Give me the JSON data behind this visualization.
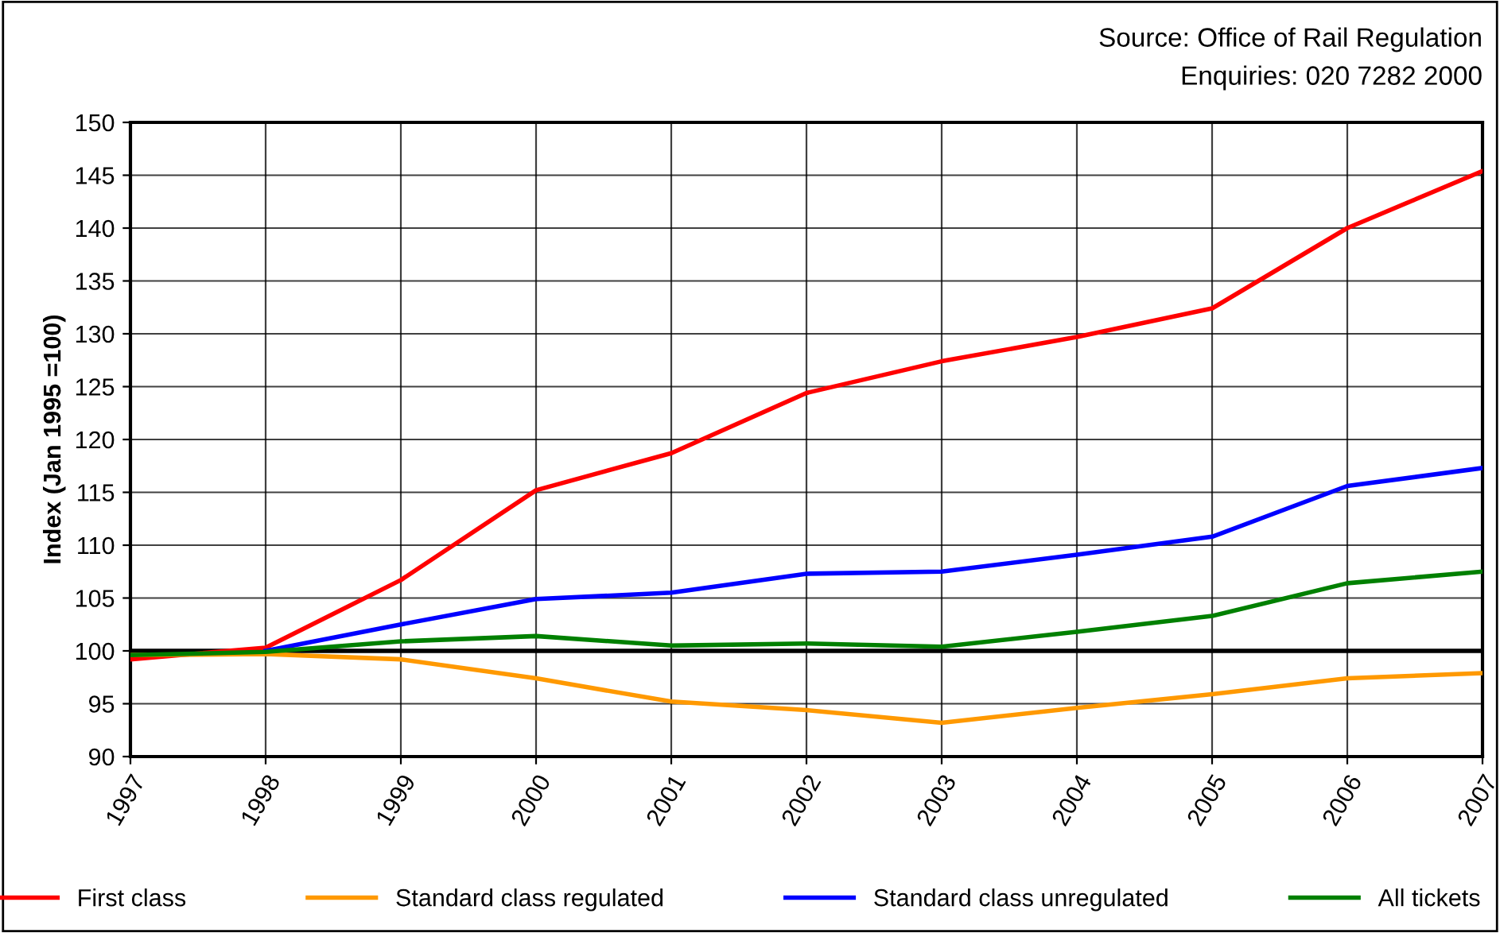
{
  "chart_data": {
    "type": "line",
    "ylabel": "Index (Jan 1995 =100)",
    "categories": [
      "1997",
      "1998",
      "1999",
      "2000",
      "2001",
      "2002",
      "2003",
      "2004",
      "2005",
      "2006",
      "2007"
    ],
    "series": [
      {
        "name": "First class",
        "color": "#ff0000",
        "values": [
          99.2,
          100.3,
          106.7,
          115.2,
          118.7,
          124.4,
          127.4,
          129.7,
          132.4,
          140.0,
          145.4
        ]
      },
      {
        "name": "Standard class regulated",
        "color": "#ff9900",
        "values": [
          99.6,
          99.7,
          99.2,
          97.4,
          95.2,
          94.4,
          93.2,
          94.6,
          95.9,
          97.4,
          97.9
        ]
      },
      {
        "name": "Standard class unregulated",
        "color": "#0000ff",
        "values": [
          null,
          100.0,
          102.5,
          104.9,
          105.5,
          107.3,
          107.5,
          109.1,
          110.8,
          115.6,
          117.3
        ]
      },
      {
        "name": "All tickets",
        "color": "#008000",
        "values": [
          99.6,
          99.9,
          100.9,
          101.4,
          100.5,
          100.7,
          100.4,
          101.8,
          103.3,
          106.4,
          107.5
        ]
      }
    ],
    "ylim": [
      90,
      150
    ],
    "yticks": [
      90,
      95,
      100,
      105,
      110,
      115,
      120,
      125,
      130,
      135,
      140,
      145,
      150
    ],
    "ref_lines": [
      {
        "axis": "y",
        "value": 100,
        "color": "#000000"
      }
    ],
    "annotations": [
      "Source: Office of Rail Regulation",
      "Enquiries: 020 7282 2000"
    ],
    "grid": true,
    "legend": "bottom",
    "marker": "none",
    "line_style": "solid"
  }
}
